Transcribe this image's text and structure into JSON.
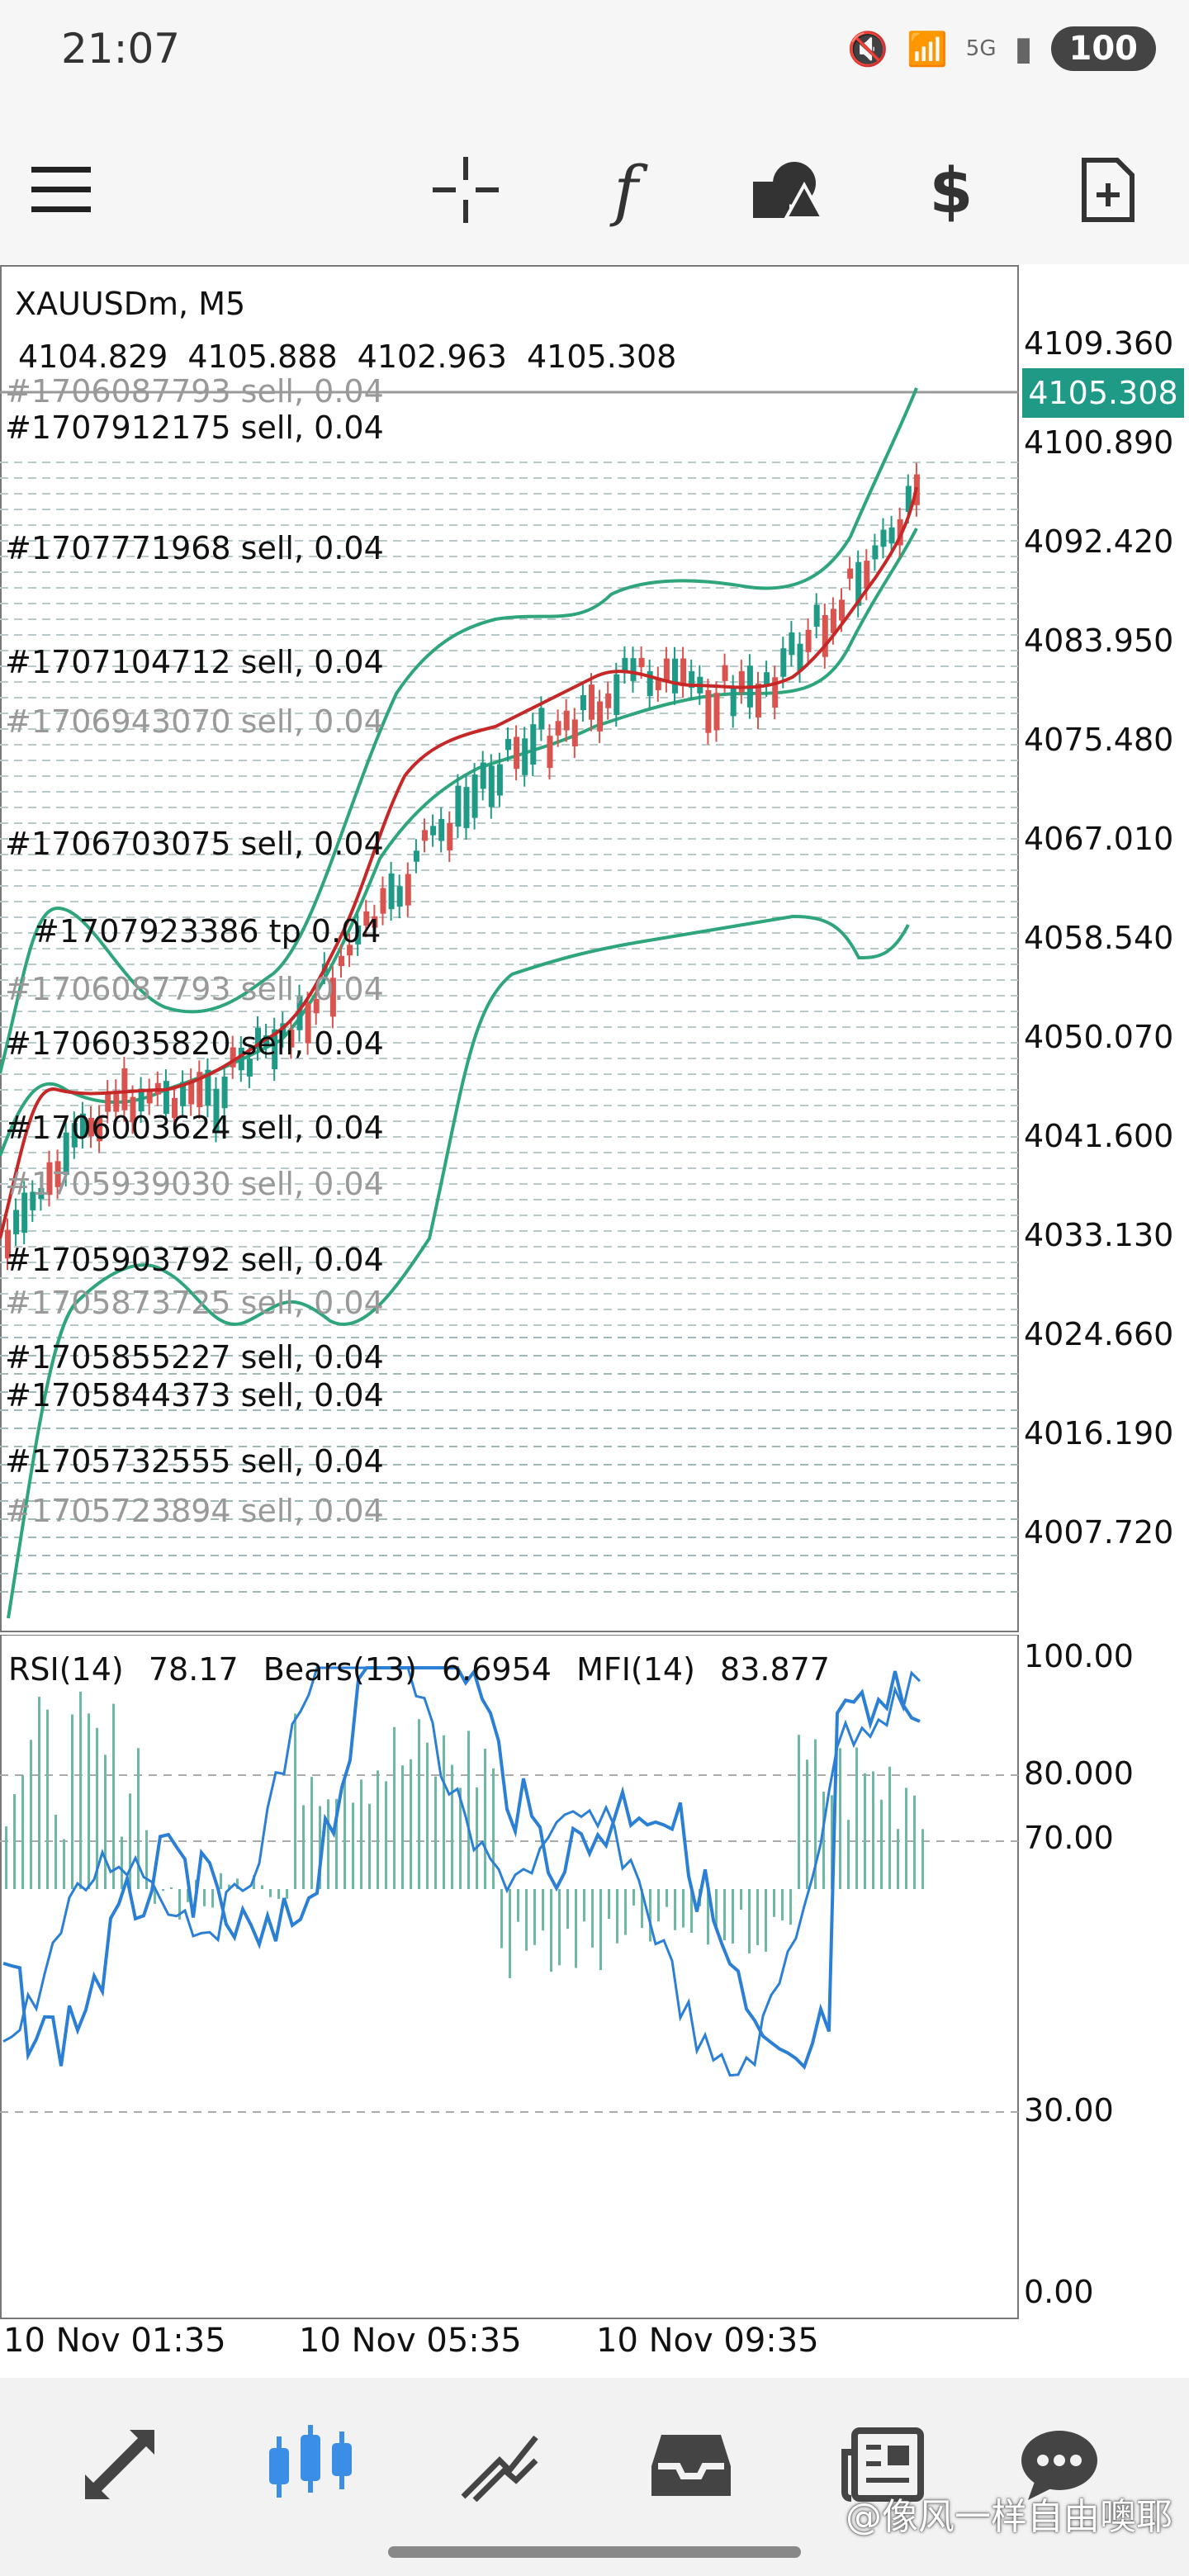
{
  "status_bar": {
    "time": "21:07",
    "battery": "100",
    "signal_label": "5G"
  },
  "toolbar": {
    "items": [
      {
        "name": "menu",
        "icon": "hamburger-icon"
      },
      {
        "name": "crosshair",
        "icon": "crosshair-icon"
      },
      {
        "name": "indicators",
        "icon": "function-icon",
        "glyph": "f"
      },
      {
        "name": "objects",
        "icon": "shapes-icon"
      },
      {
        "name": "trade",
        "icon": "dollar-icon"
      },
      {
        "name": "new-chart",
        "icon": "add-document-icon"
      }
    ]
  },
  "chart": {
    "symbol": "XAUUSDm, M5",
    "ohlc": [
      "4104.829",
      "4105.888",
      "4102.963",
      "4105.308"
    ],
    "current_price": "4105.308",
    "price_axis": [
      "4109.360",
      "4100.890",
      "4092.420",
      "4083.950",
      "4075.480",
      "4067.010",
      "4058.540",
      "4050.070",
      "4041.600",
      "4033.130",
      "4024.660",
      "4016.190",
      "4007.720"
    ],
    "orders": [
      {
        "text": "#1707912175 sell, 0.04"
      },
      {
        "text": "#1707771968 sell, 0.04"
      },
      {
        "text": "#1707104712 sell, 0.04"
      },
      {
        "text": "#1706943070 sell, 0.04"
      },
      {
        "text": "#1706703075 sell, 0.04"
      },
      {
        "text": "#1707923386 tp 0.04"
      },
      {
        "text": "#1706087793 sell, 0.04"
      },
      {
        "text": "#1706035820 sell, 0.04"
      },
      {
        "text": "#1706003624 sell, 0.04"
      },
      {
        "text": "#1705939030 sell, 0.04"
      },
      {
        "text": "#1705903792 sell, 0.04"
      },
      {
        "text": "#1705873725 sell, 0.04"
      },
      {
        "text": "#1705855227 sell, 0.04"
      },
      {
        "text": "#1705844373 sell, 0.04"
      },
      {
        "text": "#1705732555 sell, 0.04"
      },
      {
        "text": "#1705723894 sell, 0.04"
      }
    ]
  },
  "indicators": {
    "rsi_label": "RSI(14)",
    "rsi_value": "78.17",
    "bears_label": "Bears(13)",
    "bears_value": "6.6954",
    "mfi_label": "MFI(14)",
    "mfi_value": "83.877",
    "axis": [
      "100.00",
      "80.000",
      "70.00",
      "30.00",
      "0.00"
    ]
  },
  "time_axis": [
    "10 Nov 01:35",
    "10 Nov 05:35",
    "10 Nov 09:35"
  ],
  "bottom_nav": {
    "items": [
      {
        "name": "quotes",
        "icon": "quotes-arrows-icon"
      },
      {
        "name": "chart",
        "icon": "candlestick-icon",
        "active": true
      },
      {
        "name": "trade",
        "icon": "trend-icon"
      },
      {
        "name": "history",
        "icon": "inbox-icon"
      },
      {
        "name": "news",
        "icon": "newspaper-icon"
      },
      {
        "name": "messages",
        "icon": "chat-icon"
      }
    ]
  },
  "watermark": "@像风一样自由噢耶",
  "colors": {
    "up": "#1e9a86",
    "down": "#d9534f",
    "ma": "#c62828",
    "band": "#2ea57a",
    "rsi": "#2b7fd4",
    "accent": "#3a8ee6"
  }
}
